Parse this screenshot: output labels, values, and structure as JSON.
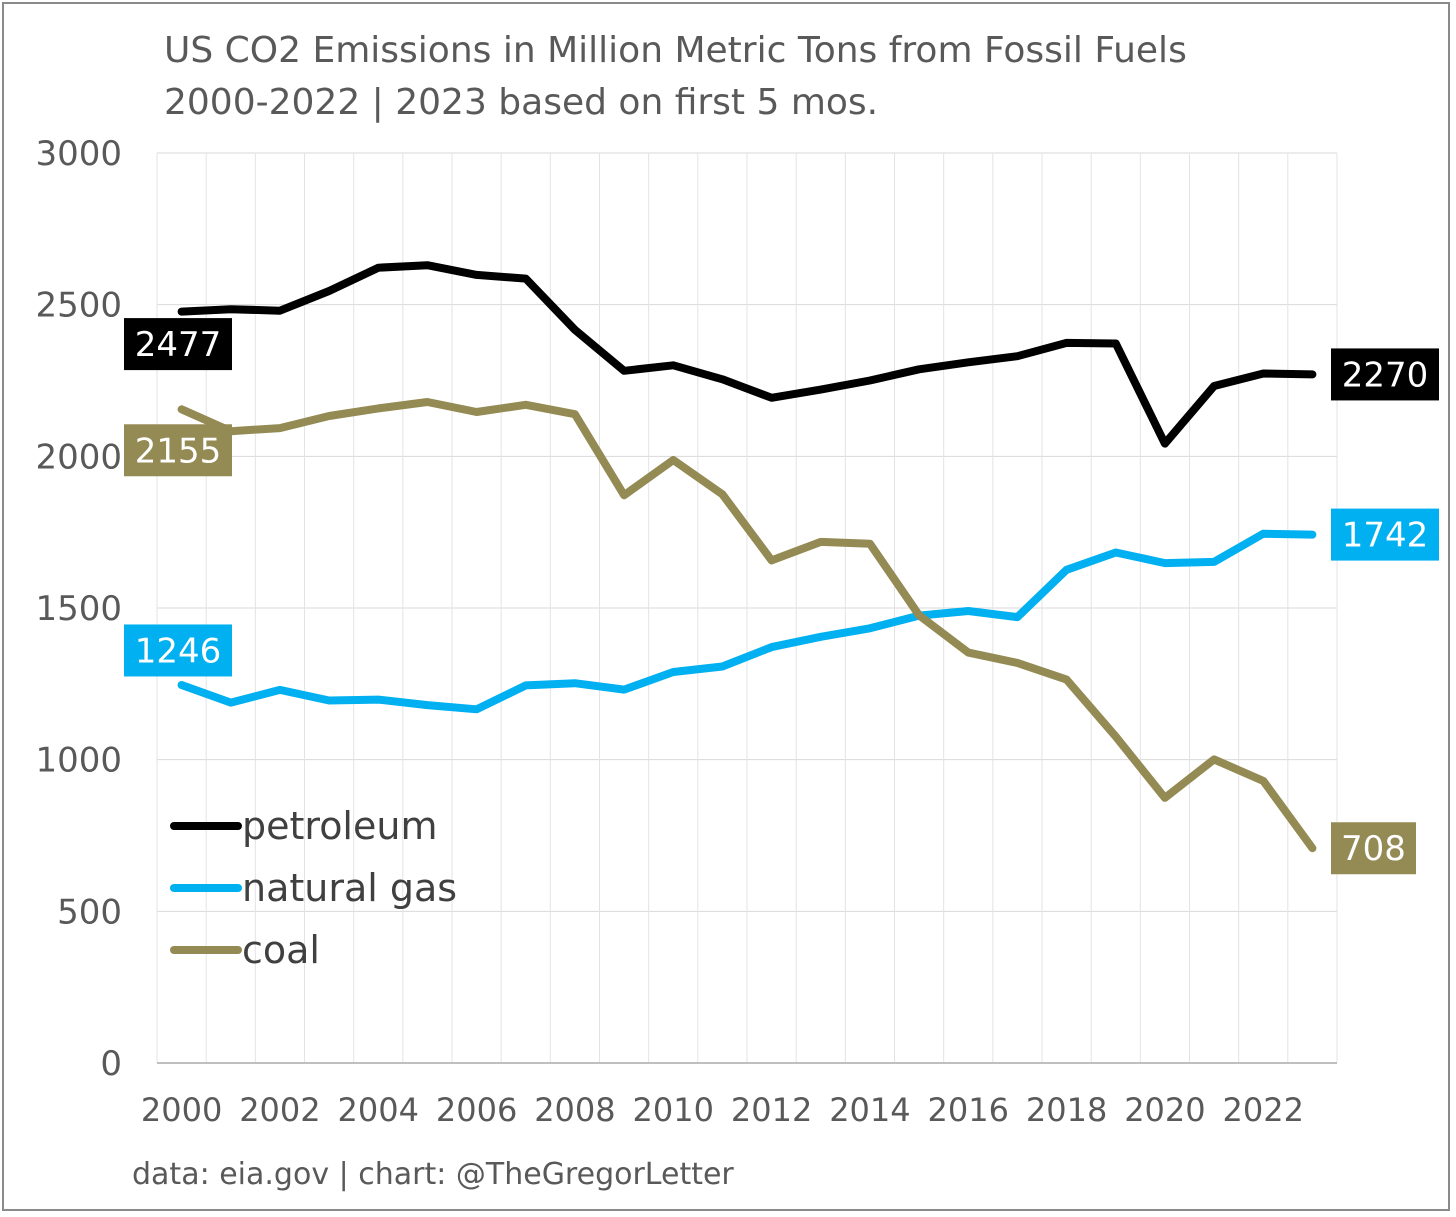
{
  "chart_data": {
    "type": "line",
    "title": "US CO2 Emissions in Million Metric Tons from Fossil Fuels",
    "subtitle": "2000-2022 | 2023 based on first 5 mos.",
    "xlabel": "",
    "ylabel": "",
    "x": [
      2000,
      2001,
      2002,
      2003,
      2004,
      2005,
      2006,
      2007,
      2008,
      2009,
      2010,
      2011,
      2012,
      2013,
      2014,
      2015,
      2016,
      2017,
      2018,
      2019,
      2020,
      2021,
      2022,
      2023
    ],
    "x_ticks": [
      "2000",
      "2002",
      "2004",
      "2006",
      "2008",
      "2010",
      "2012",
      "2014",
      "2016",
      "2018",
      "2020",
      "2022"
    ],
    "ylim": [
      0,
      3000
    ],
    "y_ticks": [
      "0",
      "500",
      "1000",
      "1500",
      "2000",
      "2500",
      "3000"
    ],
    "grid": true,
    "legend_position": "bottom-left",
    "series": [
      {
        "name": "petroleum",
        "color": "#000000",
        "values": [
          2477,
          2485,
          2480,
          2545,
          2622,
          2630,
          2598,
          2586,
          2417,
          2282,
          2300,
          2254,
          2193,
          2220,
          2250,
          2287,
          2310,
          2330,
          2374,
          2372,
          2042,
          2232,
          2273,
          2270
        ],
        "end_label": "2270",
        "start_label": "2477"
      },
      {
        "name": "natural gas",
        "color": "#00b0f0",
        "values": [
          1246,
          1188,
          1230,
          1195,
          1198,
          1180,
          1166,
          1245,
          1252,
          1231,
          1289,
          1307,
          1371,
          1405,
          1433,
          1475,
          1490,
          1470,
          1626,
          1683,
          1648,
          1652,
          1745,
          1742
        ],
        "end_label": "1742",
        "start_label": "1246"
      },
      {
        "name": "coal",
        "color": "#948a54",
        "values": [
          2155,
          2083,
          2093,
          2133,
          2158,
          2179,
          2146,
          2170,
          2139,
          1872,
          1988,
          1875,
          1657,
          1718,
          1712,
          1476,
          1353,
          1319,
          1264,
          1076,
          874,
          1001,
          930,
          708
        ],
        "end_label": "708",
        "start_label": "2155"
      }
    ]
  },
  "footer": "data: eia.gov | chart: @TheGregorLetter"
}
